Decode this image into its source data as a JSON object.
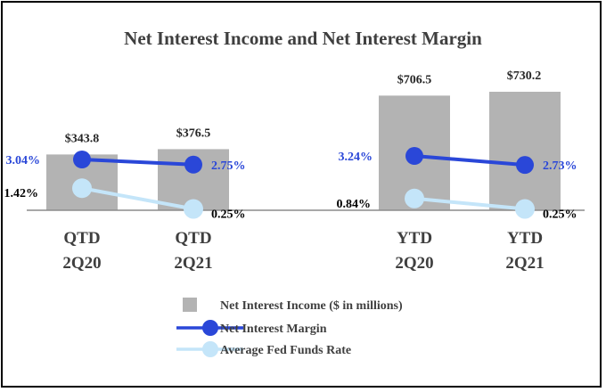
{
  "chart_data": {
    "type": "bar",
    "title": "Net Interest Income and Net Interest Margin",
    "groups": [
      {
        "categories": [
          "QTD\n2Q20",
          "QTD\n2Q21"
        ]
      },
      {
        "categories": [
          "YTD\n2Q20",
          "YTD\n2Q21"
        ]
      }
    ],
    "categories": [
      {
        "line1": "QTD",
        "line2": "2Q20"
      },
      {
        "line1": "QTD",
        "line2": "2Q21"
      },
      {
        "line1": "YTD",
        "line2": "2Q20"
      },
      {
        "line1": "YTD",
        "line2": "2Q21"
      }
    ],
    "series": [
      {
        "name": "Net Interest Income ($ in millions)",
        "kind": "bar",
        "color": "#b3b3b3",
        "values": [
          343.8,
          376.5,
          706.5,
          730.2
        ],
        "labels": [
          "$343.8",
          "$376.5",
          "$706.5",
          "$730.2"
        ]
      },
      {
        "name": "Net Interest Margin",
        "kind": "line",
        "color": "#2a47d8",
        "values": [
          3.04,
          2.75,
          3.24,
          2.73
        ],
        "labels": [
          "3.04%",
          "2.75%",
          "3.24%",
          "2.73%"
        ]
      },
      {
        "name": "Average Fed Funds Rate",
        "kind": "line",
        "color": "#c4e5f9",
        "values": [
          1.42,
          0.25,
          0.84,
          0.25
        ],
        "labels": [
          "1.42%",
          "0.25%",
          "0.84%",
          "0.25%"
        ]
      }
    ],
    "legend_position": "bottom"
  }
}
